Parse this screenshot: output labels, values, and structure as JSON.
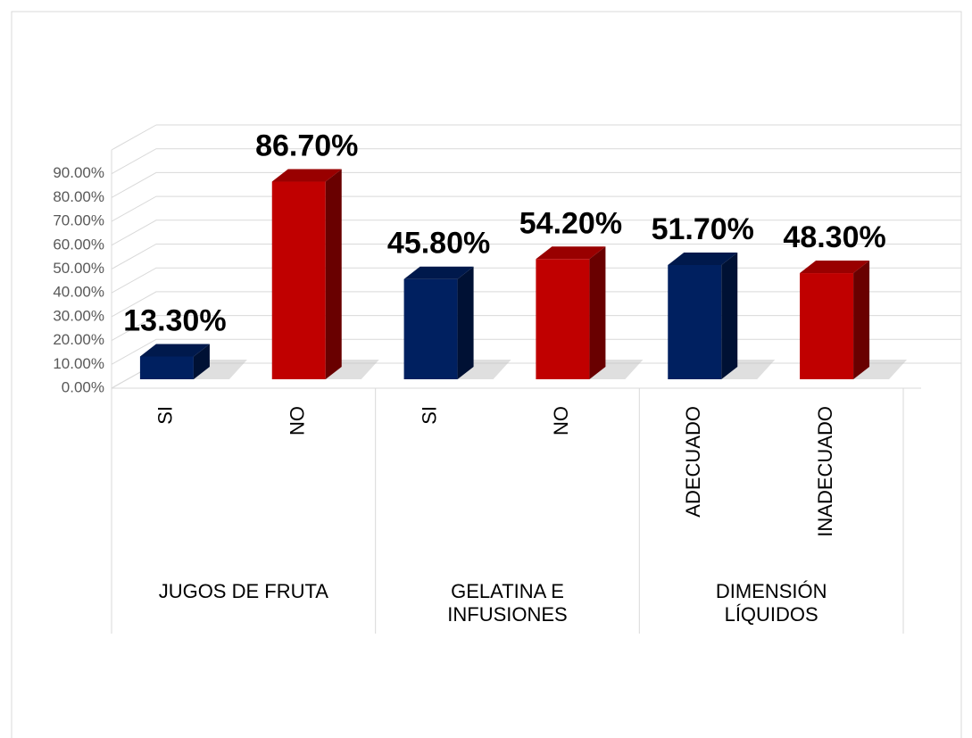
{
  "chart_data": {
    "type": "bar3d",
    "categories": [
      "SI",
      "NO",
      "SI",
      "NO",
      "ADECUADO",
      "INADECUADO"
    ],
    "groups": [
      "JUGOS DE FRUTA",
      "GELATINA E INFUSIONES",
      "DIMENSIÓN LÍQUIDOS"
    ],
    "values": [
      13.3,
      86.7,
      45.8,
      54.2,
      51.7,
      48.3
    ],
    "value_labels": [
      "13.30%",
      "86.70%",
      "45.80%",
      "54.20%",
      "51.70%",
      "48.30%"
    ],
    "colors": [
      "#002060",
      "#c00000",
      "#002060",
      "#c00000",
      "#002060",
      "#c00000"
    ],
    "ylim": [
      0,
      100
    ],
    "yticks": [
      {
        "value": 0,
        "label": "0.00%"
      },
      {
        "value": 10,
        "label": "10.00%"
      },
      {
        "value": 20,
        "label": "20.00%"
      },
      {
        "value": 30,
        "label": "30.00%"
      },
      {
        "value": 40,
        "label": "40.00%"
      },
      {
        "value": 50,
        "label": "50.00%"
      },
      {
        "value": 60,
        "label": "60.00%"
      },
      {
        "value": 70,
        "label": "70.00%"
      },
      {
        "value": 80,
        "label": "80.00%"
      },
      {
        "value": 90,
        "label": "90.00%"
      }
    ],
    "grid": true
  }
}
